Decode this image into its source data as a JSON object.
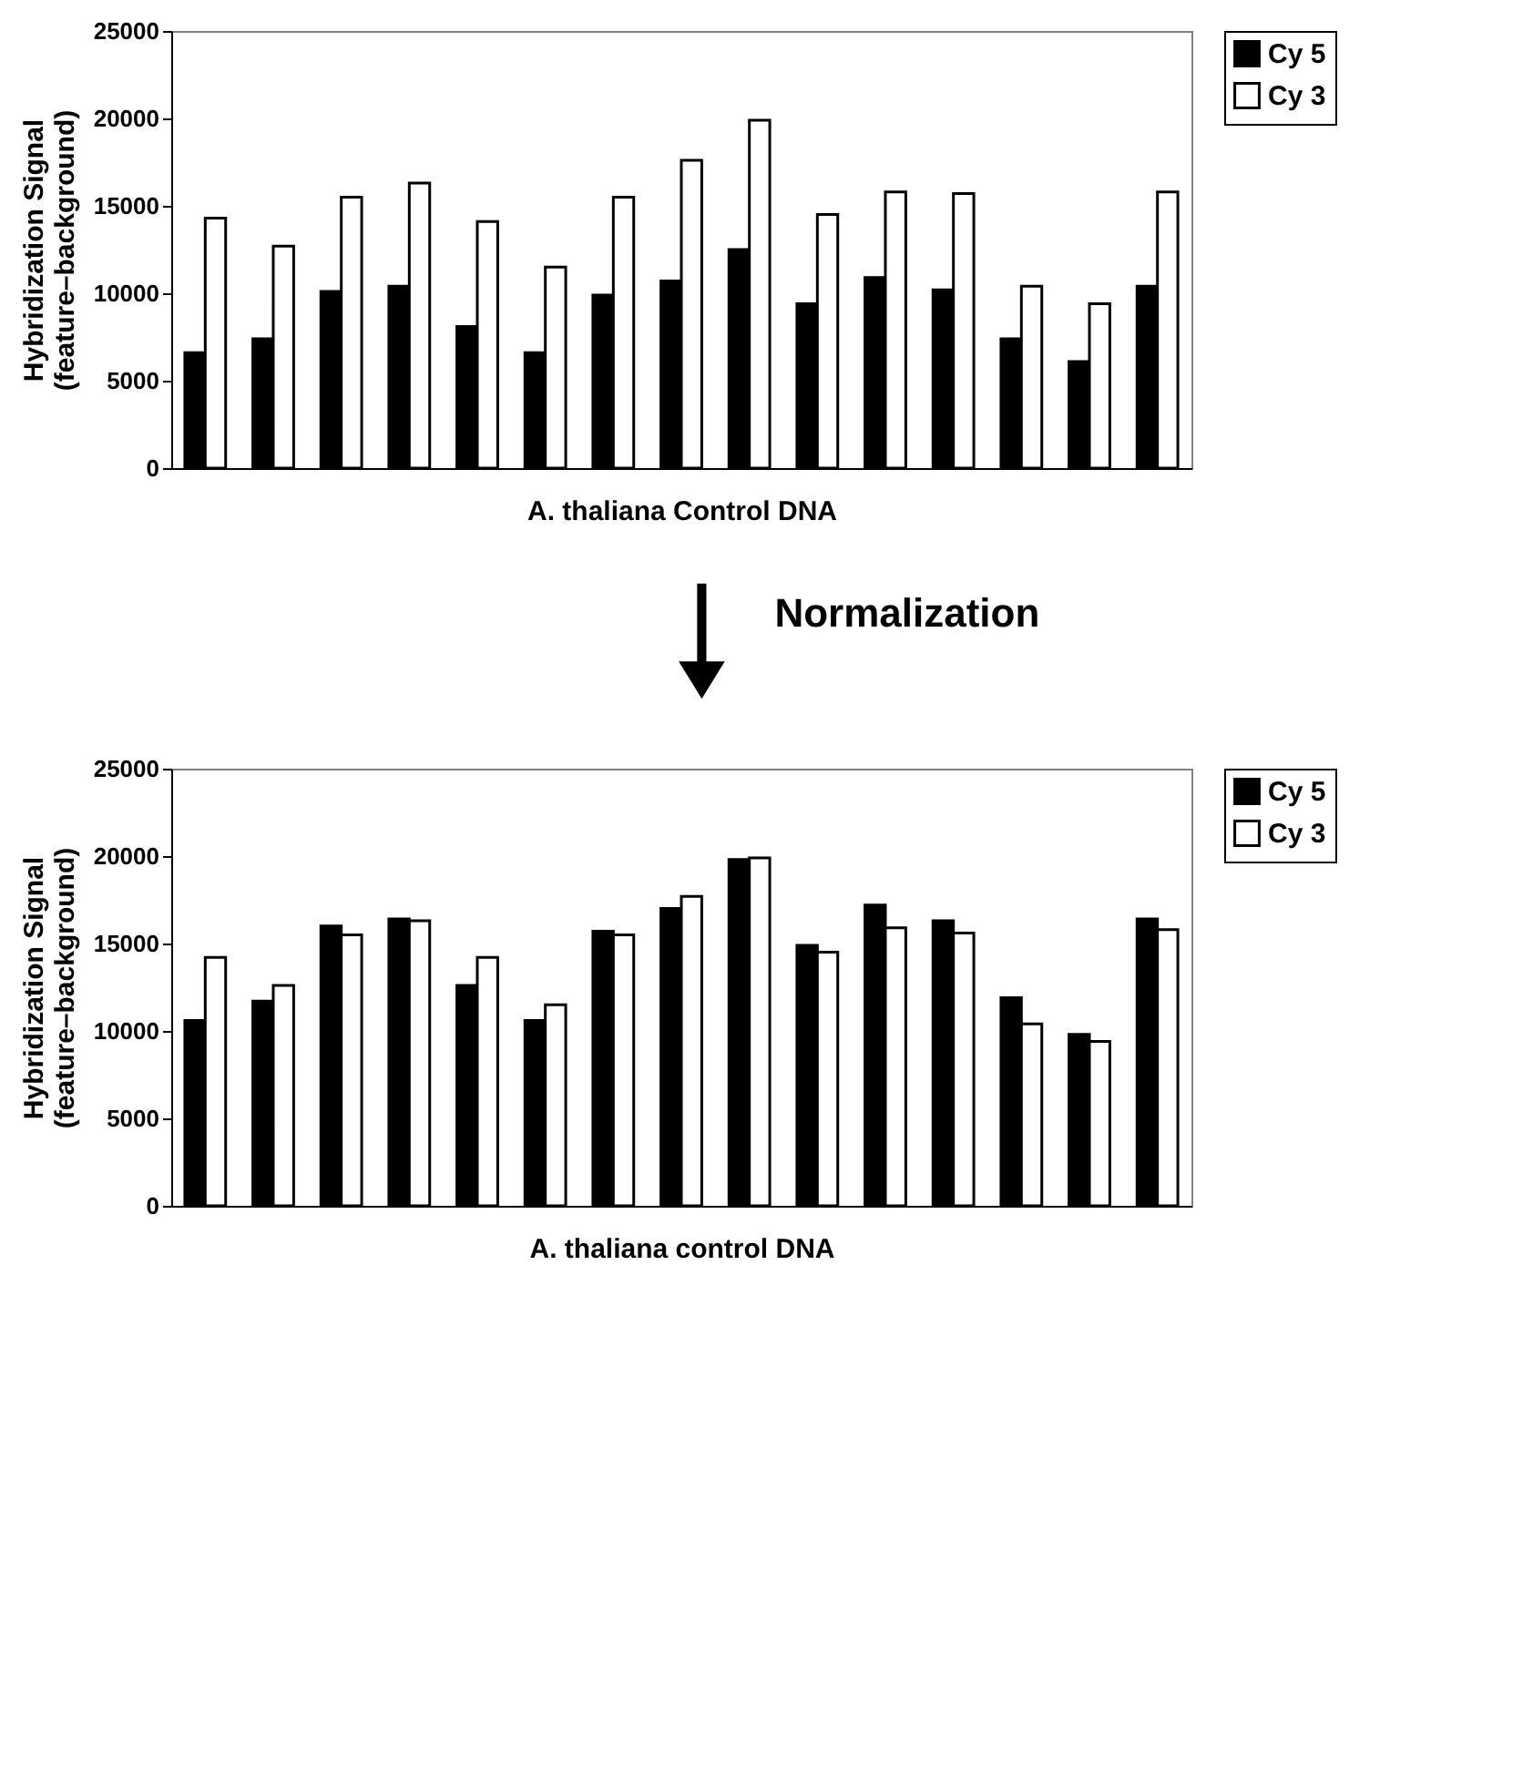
{
  "chart_data": [
    {
      "type": "bar",
      "xlabel": "A. thaliana Control DNA",
      "ylabel": "Hybridization Signal\n(feature–background)",
      "categories": [
        null,
        null,
        null,
        null,
        null,
        null,
        null,
        null,
        null,
        null,
        null,
        null,
        null,
        null,
        null
      ],
      "series": [
        {
          "name": "Cy 5",
          "color": "#000000",
          "values": [
            6600,
            7400,
            10100,
            10400,
            8100,
            6600,
            9900,
            10700,
            12500,
            9400,
            10900,
            10200,
            7400,
            6100,
            10400
          ]
        },
        {
          "name": "Cy 3",
          "color": "#ffffff",
          "values": [
            14300,
            12700,
            15500,
            16300,
            14100,
            11500,
            15500,
            17600,
            19900,
            14500,
            15800,
            15700,
            10400,
            9400,
            15800
          ]
        }
      ],
      "ylim": [
        0,
        25000
      ],
      "yticks": [
        0,
        5000,
        10000,
        15000,
        20000,
        25000
      ],
      "grid": false,
      "legend": "right",
      "annotations": [
        "Normalization"
      ]
    },
    {
      "type": "bar",
      "xlabel": "A. thaliana control DNA",
      "ylabel": "Hybridization Signal\n(feature–background)",
      "categories": [
        null,
        null,
        null,
        null,
        null,
        null,
        null,
        null,
        null,
        null,
        null,
        null,
        null,
        null,
        null
      ],
      "series": [
        {
          "name": "Cy 5",
          "color": "#000000",
          "values": [
            10600,
            11700,
            16000,
            16400,
            12600,
            10600,
            15700,
            17000,
            19800,
            14900,
            17200,
            16300,
            11900,
            9800,
            16400
          ]
        },
        {
          "name": "Cy 3",
          "color": "#ffffff",
          "values": [
            14200,
            12600,
            15500,
            16300,
            14200,
            11500,
            15500,
            17700,
            19900,
            14500,
            15900,
            15600,
            10400,
            9400,
            15800
          ]
        }
      ],
      "ylim": [
        0,
        25000
      ],
      "yticks": [
        0,
        5000,
        10000,
        15000,
        20000,
        25000
      ],
      "grid": false,
      "legend": "right"
    }
  ]
}
